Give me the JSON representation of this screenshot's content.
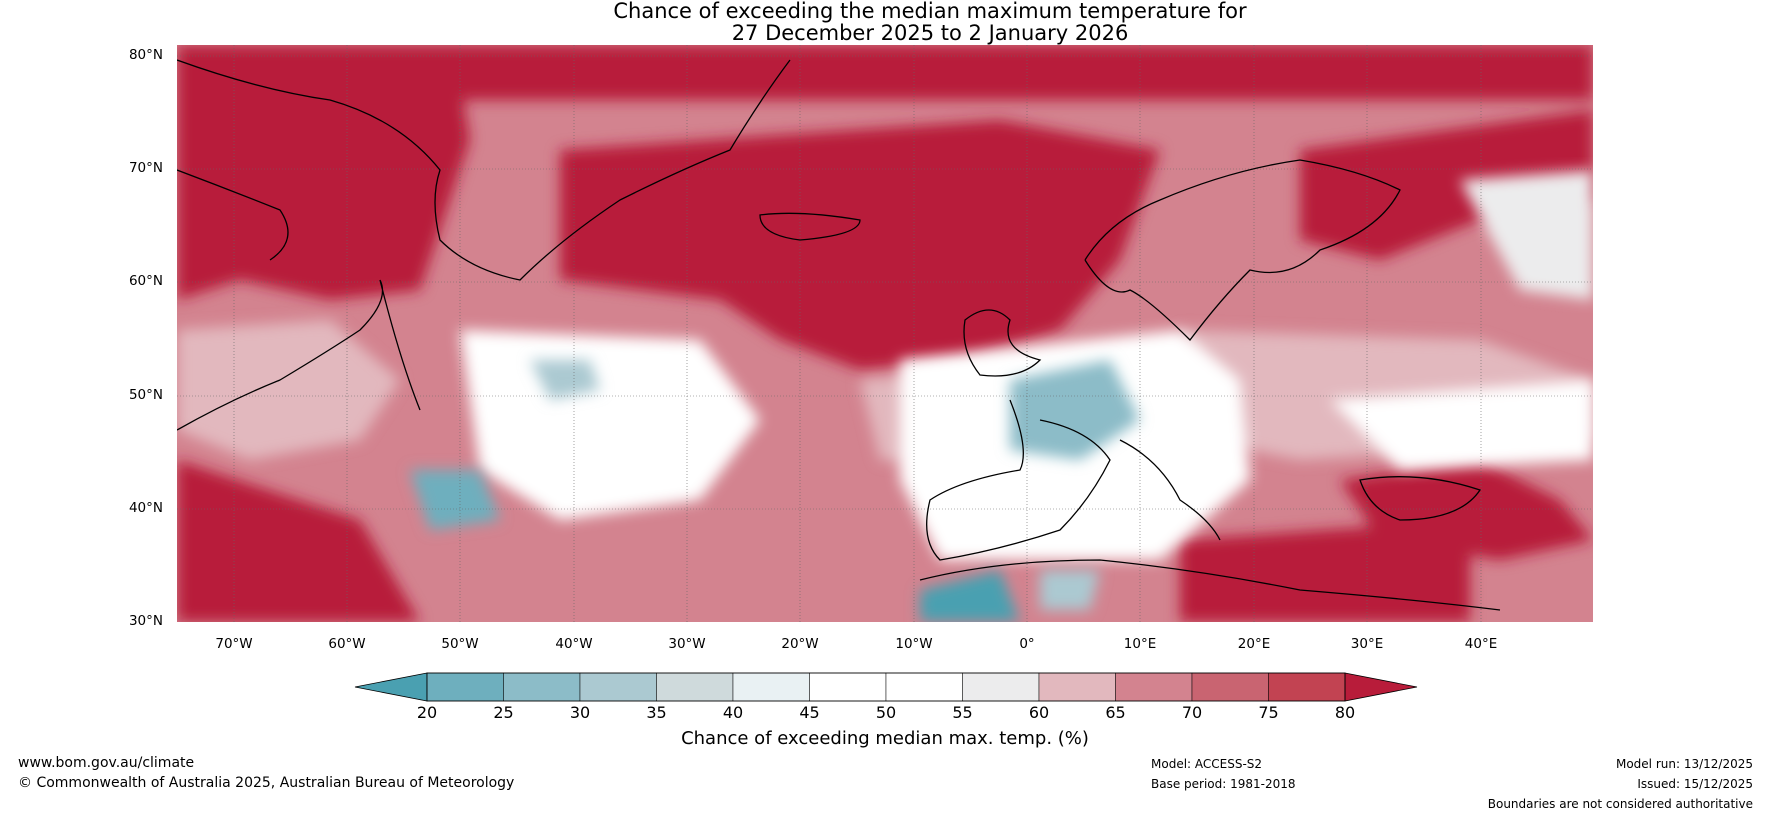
{
  "title": {
    "line1": "Chance of exceeding the median maximum temperature for",
    "line2": "27 December 2025 to 2 January 2026"
  },
  "map": {
    "lat_labels": [
      "80°N",
      "70°N",
      "60°N",
      "50°N",
      "40°N",
      "30°N"
    ],
    "lon_labels": [
      "70°W",
      "60°W",
      "50°W",
      "40°W",
      "30°W",
      "20°W",
      "10°W",
      "0°",
      "10°E",
      "20°E",
      "30°E",
      "40°E"
    ],
    "lat_range": [
      30,
      81
    ],
    "lon_range": [
      -75,
      50
    ]
  },
  "colorbar": {
    "ticks": [
      "20",
      "25",
      "30",
      "35",
      "40",
      "45",
      "50",
      "55",
      "60",
      "65",
      "70",
      "75",
      "80"
    ],
    "colors": [
      "#4aa0b1",
      "#6eafbe",
      "#8cbcc8",
      "#abc9d1",
      "#cfdadc",
      "#e9f1f3",
      "#ffffff",
      "#ffffff",
      "#ececed",
      "#e2b8be",
      "#d3838f",
      "#c96471",
      "#c24352",
      "#b81c3a"
    ],
    "label": "Chance of exceeding median max. temp. (%)"
  },
  "footer": {
    "website": "www.bom.gov.au/climate",
    "copyright": "© Commonwealth of Australia 2025, Australian Bureau of Meteorology",
    "model": "Model: ACCESS-S2",
    "base_period": "Base period: 1981-2018",
    "model_run": "Model run: 13/12/2025",
    "issued": "Issued: 15/12/2025",
    "disclaimer": "Boundaries are not considered authoritative"
  }
}
